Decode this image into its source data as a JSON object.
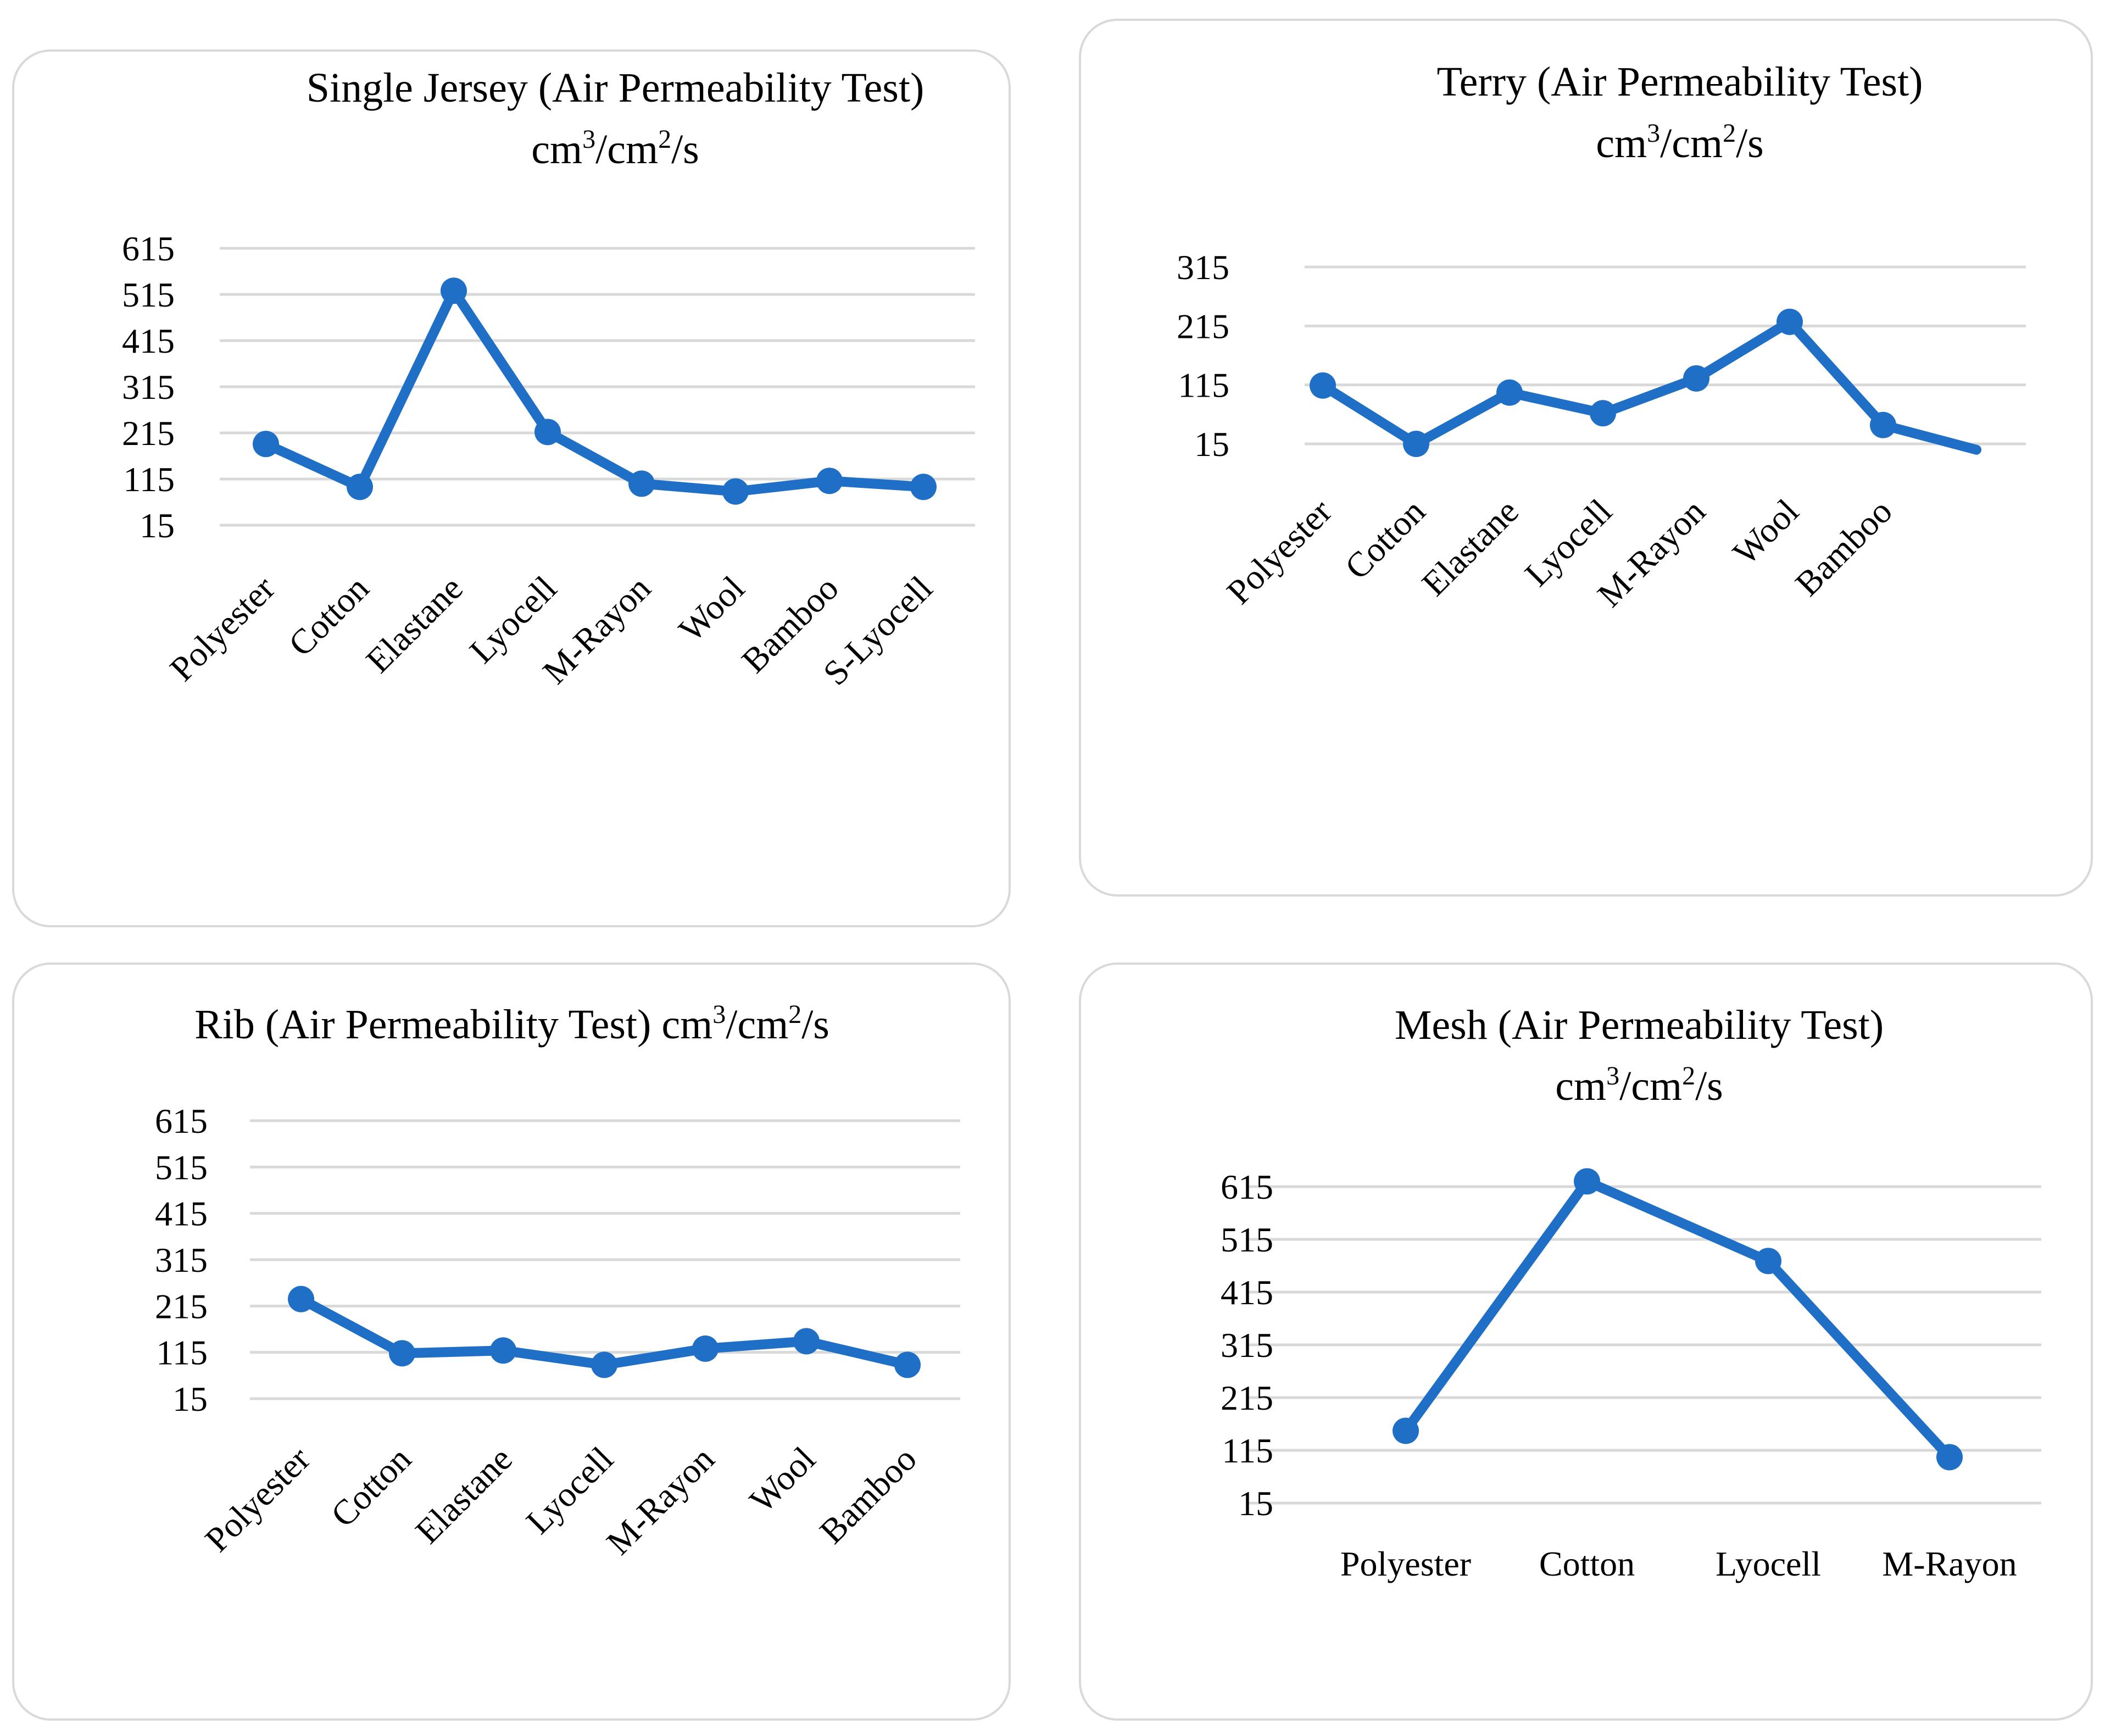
{
  "charts": [
    {
      "id": "single_jersey",
      "title_lines": [
        [
          "Single Jersey (Air Permeability Test)"
        ],
        [
          "cm",
          {
            "sup": "3"
          },
          "/cm",
          {
            "sup": "2"
          },
          "/s"
        ]
      ],
      "y_ticks": [
        "615",
        "515",
        "415",
        "315",
        "215",
        "115",
        "15"
      ]
    },
    {
      "id": "terry",
      "title_lines": [
        [
          "Terry (Air Permeability Test)"
        ],
        [
          "cm",
          {
            "sup": "3"
          },
          "/cm",
          {
            "sup": "2"
          },
          "/s"
        ]
      ],
      "y_ticks": [
        "315",
        "215",
        "115",
        "15"
      ]
    },
    {
      "id": "rib",
      "title_lines": [
        [
          "Rib (Air Permeability Test) cm",
          {
            "sup": "3"
          },
          "/cm",
          {
            "sup": "2"
          },
          "/s"
        ]
      ],
      "y_ticks": [
        "615",
        "515",
        "415",
        "315",
        "215",
        "115",
        "15"
      ]
    },
    {
      "id": "mesh",
      "title_lines": [
        [
          "Mesh (Air Permeability Test)"
        ],
        [
          "cm",
          {
            "sup": "3"
          },
          "/cm",
          {
            "sup": "2"
          },
          "/s"
        ]
      ],
      "y_ticks": [
        "615",
        "515",
        "415",
        "315",
        "215",
        "115",
        "15"
      ]
    }
  ],
  "chart_data": [
    {
      "type": "line",
      "title": "Single Jersey (Air Permeability Test) cm3/cm2/s",
      "categories": [
        "Polyester",
        "Cotton",
        "Elastane",
        "Lyocell",
        "M-Rayon",
        "Wool",
        "Bamboo",
        "S-Lyocell"
      ],
      "series": [
        {
          "name": "Air Permeability",
          "values": [
            191,
            98,
            523,
            217,
            105,
            88,
            111,
            98
          ]
        }
      ],
      "ylim": [
        15,
        615
      ],
      "ticks": [
        15,
        115,
        215,
        315,
        415,
        515,
        615
      ],
      "grid": true,
      "color": "#1f6fc6",
      "xlabel": "",
      "ylabel": ""
    },
    {
      "type": "line",
      "title": "Terry (Air Permeability Test) cm3/cm2/s",
      "categories": [
        "Polyester",
        "Cotton",
        "Elastane",
        "Lyocell",
        "M-Rayon",
        "Wool",
        "Bamboo",
        ""
      ],
      "series": [
        {
          "name": "Air Permeability",
          "values": [
            114,
            15,
            102,
            67,
            126,
            222,
            47,
            5
          ]
        }
      ],
      "ylim": [
        15,
        315
      ],
      "ticks": [
        15,
        115,
        215,
        315
      ],
      "grid": true,
      "color": "#1f6fc6",
      "xlabel": "",
      "ylabel": ""
    },
    {
      "type": "line",
      "title": "Rib (Air Permeability Test) cm3/cm2/s",
      "categories": [
        "Polyester",
        "Cotton",
        "Elastane",
        "Lyocell",
        "M-Rayon",
        "Wool",
        "Bamboo"
      ],
      "series": [
        {
          "name": "Air Permeability",
          "values": [
            230,
            113,
            119,
            88,
            123,
            139,
            88
          ]
        }
      ],
      "ylim": [
        15,
        615
      ],
      "ticks": [
        15,
        115,
        215,
        315,
        415,
        515,
        615
      ],
      "grid": true,
      "color": "#1f6fc6",
      "xlabel": "",
      "ylabel": ""
    },
    {
      "type": "line",
      "title": "Mesh (Air Permeability Test) cm3/cm2/s",
      "categories": [
        "Polyester",
        "Cotton",
        "Lyocell",
        "M-Rayon"
      ],
      "series": [
        {
          "name": "Air Permeability",
          "values": [
            152,
            625,
            474,
            102
          ]
        }
      ],
      "ylim": [
        15,
        615
      ],
      "ticks": [
        15,
        115,
        215,
        315,
        415,
        515,
        615
      ],
      "grid": true,
      "color": "#1f6fc6",
      "xlabel": "",
      "ylabel": ""
    }
  ]
}
